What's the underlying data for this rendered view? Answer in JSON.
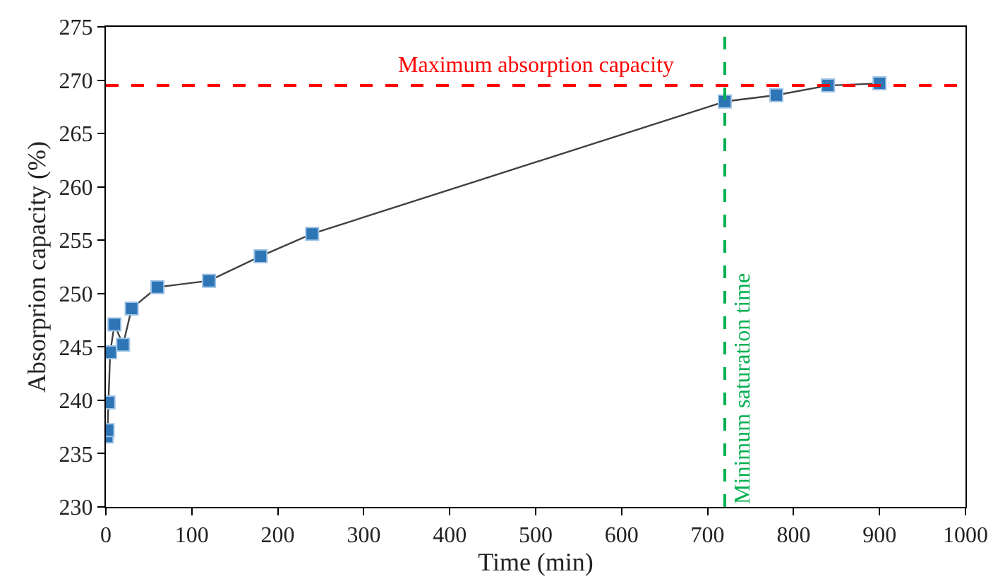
{
  "chart_data": {
    "type": "line",
    "xlabel": "Time (min)",
    "ylabel": "Absorprion capacity (%)",
    "x": [
      1,
      2,
      3,
      5,
      10,
      20,
      30,
      60,
      120,
      180,
      240,
      720,
      780,
      840,
      900
    ],
    "series": [
      {
        "color": "#2e75b6",
        "values": [
          236.6,
          237.2,
          239.8,
          244.5,
          247.1,
          245.2,
          248.6,
          250.6,
          251.2,
          253.5,
          255.6,
          268.0,
          268.6,
          269.5,
          269.7
        ]
      }
    ],
    "marker": "square",
    "line_style": "solid",
    "legend": false,
    "xlim": [
      0,
      1000
    ],
    "xticks": [
      0,
      100,
      200,
      300,
      400,
      500,
      600,
      700,
      800,
      900,
      1000
    ],
    "ylim": [
      230,
      275
    ],
    "yticks": [
      230,
      235,
      240,
      245,
      250,
      255,
      260,
      265,
      270,
      275
    ],
    "ref_lines": [
      {
        "axis": "y",
        "value": 269.5,
        "label": "Maximum absorption capacity",
        "color": "#ff0000",
        "line_style": "dashed"
      },
      {
        "axis": "x",
        "value": 720,
        "label": "Minimum saturation time",
        "color": "#00b050",
        "line_style": "dashed"
      }
    ]
  }
}
